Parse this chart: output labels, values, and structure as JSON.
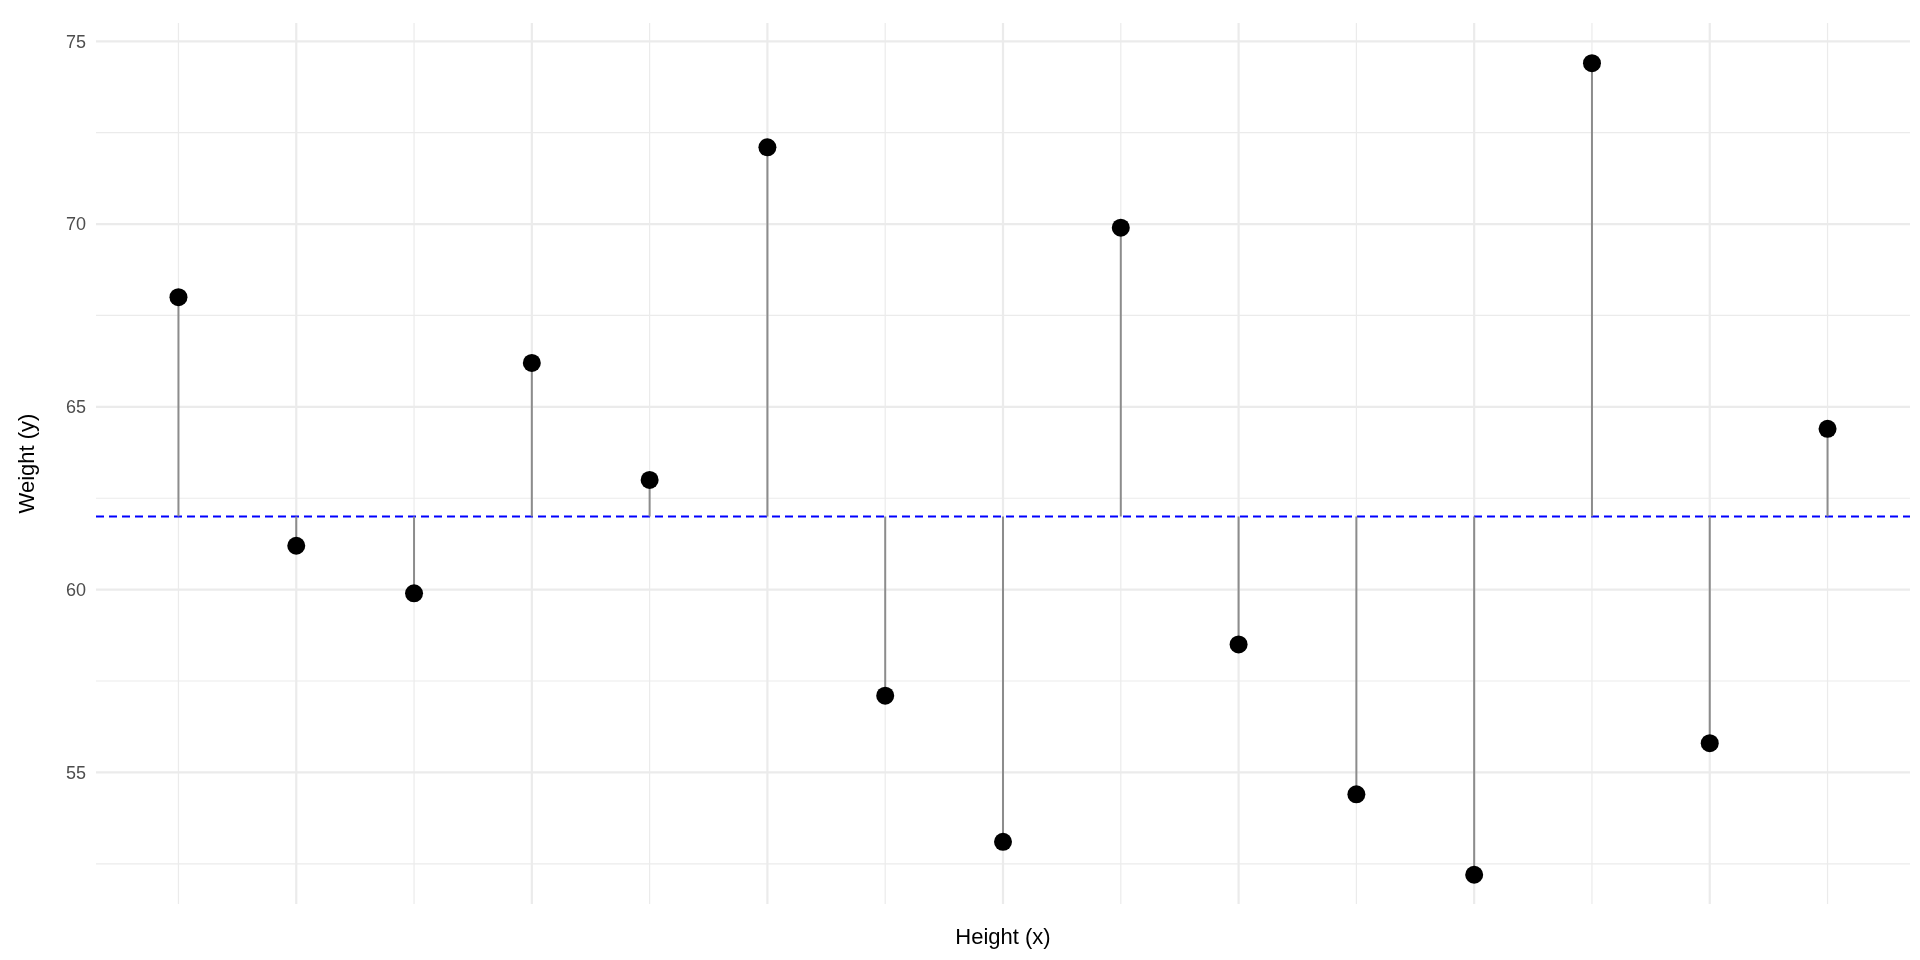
{
  "chart_data": {
    "type": "lollipop",
    "xlabel": "Height (x)",
    "ylabel": "Weight (y)",
    "categories": [
      null,
      null,
      null,
      null,
      null,
      null,
      null,
      null,
      null,
      null,
      null,
      null,
      null,
      null,
      null
    ],
    "values": [
      68.0,
      61.2,
      59.9,
      66.2,
      63.0,
      72.1,
      57.1,
      53.1,
      69.9,
      58.5,
      54.4,
      52.2,
      74.4,
      55.8,
      64.4
    ],
    "errors": [
      [
        62,
        68.0
      ],
      [
        61.2,
        62
      ],
      [
        59.9,
        62
      ],
      [
        62,
        66.2
      ],
      [
        62,
        63.0
      ],
      [
        62,
        72.1
      ],
      [
        57.1,
        62
      ],
      [
        53.1,
        62
      ],
      [
        62,
        69.9
      ],
      [
        58.5,
        62
      ],
      [
        54.4,
        62
      ],
      [
        52.2,
        62
      ],
      [
        62,
        74.4
      ],
      [
        55.8,
        62
      ],
      [
        62,
        64.4
      ]
    ],
    "color": "#000000",
    "ylim": [
      51.4,
      75.5
    ],
    "yticks": [
      {
        "value": 52.5,
        "label": null
      },
      55,
      {
        "value": 57.5,
        "label": null
      },
      60,
      {
        "value": 62.5,
        "label": null
      },
      65,
      {
        "value": 67.5,
        "label": null
      },
      70,
      {
        "value": 72.5,
        "label": null
      },
      75
    ],
    "ref_lines": [
      {
        "axis": "y",
        "value": 62,
        "color": "#0000ff",
        "line_style": "dashed"
      }
    ],
    "grid": true,
    "marker": "circle"
  }
}
